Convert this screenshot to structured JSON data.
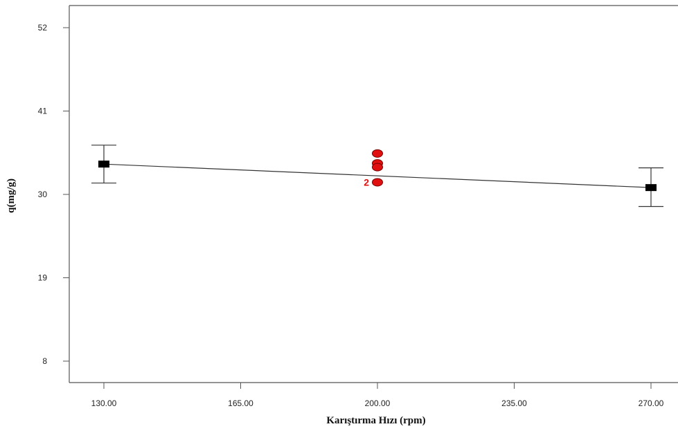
{
  "chart_data": {
    "type": "scatter",
    "title": "",
    "xlabel": "Karıştırma Hızı (rpm)",
    "ylabel": "q(mg/g)",
    "xlim": [
      117,
      279
    ],
    "ylim": [
      4,
      55.5
    ],
    "xticks": [
      130,
      165,
      200,
      235,
      270
    ],
    "xtick_labels": [
      "130.00",
      "165.00",
      "200.00",
      "235.00",
      "270.00"
    ],
    "yticks": [
      8,
      19,
      30,
      41,
      52
    ],
    "ytick_labels": [
      "8",
      "19",
      "30",
      "41",
      "52"
    ],
    "grid": false,
    "legend": "none",
    "series": [
      {
        "role": "prediction-line",
        "x": [
          130,
          270
        ],
        "y": [
          34.0,
          30.9
        ]
      },
      {
        "role": "factor-points-with-error-bars",
        "x": [
          130,
          270
        ],
        "y": [
          34.0,
          30.9
        ],
        "err_low": [
          31.5,
          28.4
        ],
        "err_high": [
          36.5,
          33.5
        ]
      },
      {
        "role": "observed-design-points",
        "x": [
          200,
          200,
          200,
          200
        ],
        "y": [
          35.4,
          34.1,
          33.6,
          31.6
        ]
      }
    ],
    "annotations": [
      {
        "text": "2",
        "x": 200,
        "y": 31.6
      }
    ],
    "colors": {
      "axis": "#555555",
      "line": "#333333",
      "factor_point": "#000000",
      "design_point": "#e01010",
      "design_point_stroke": "#7a0000",
      "annotation": "#e01010"
    }
  }
}
